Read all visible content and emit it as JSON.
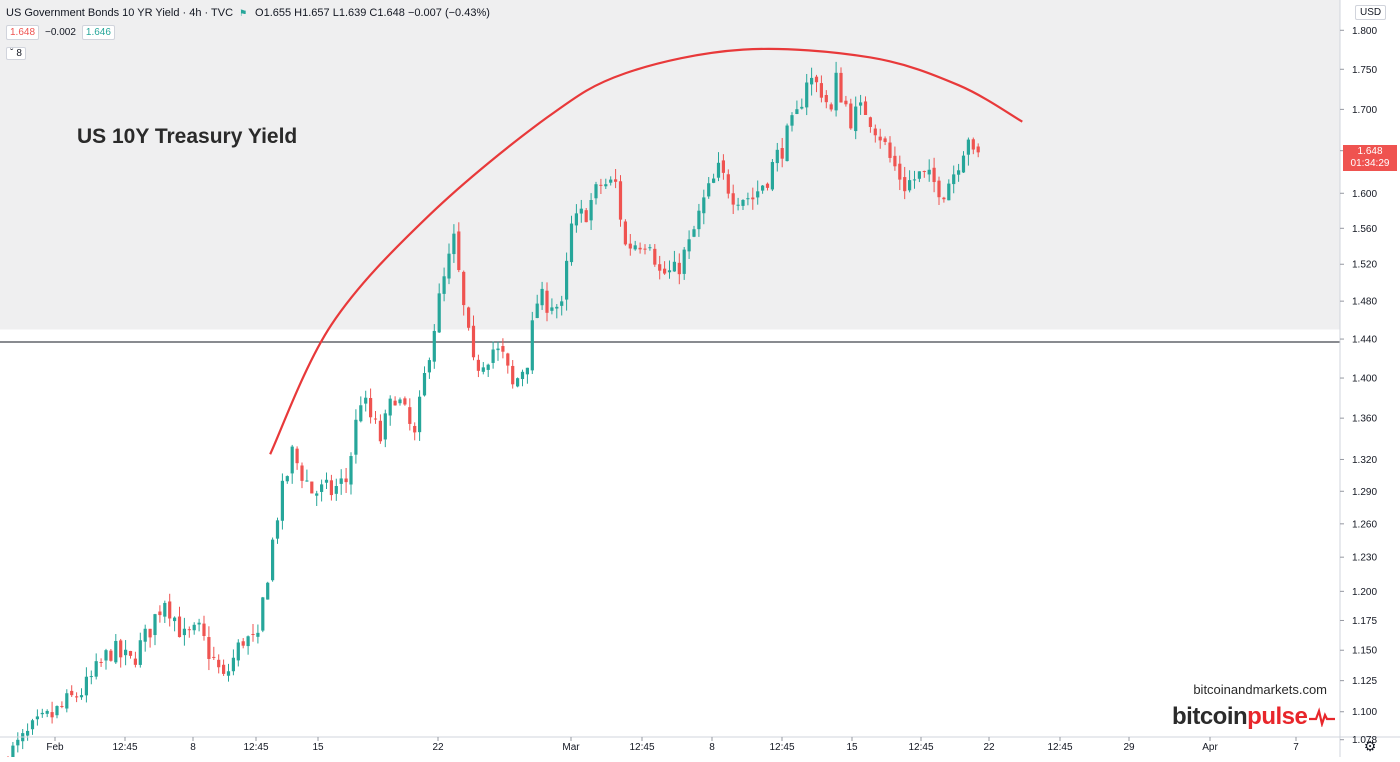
{
  "header": {
    "symbol_title": "US Government Bonds 10 YR Yield · 4h · TVC",
    "ohlc": "O1.655 H1.657 L1.639 C1.648 −0.007 (−0.43%)"
  },
  "price_badges": {
    "sell": "1.648",
    "spread": "−0.002",
    "buy": "1.646"
  },
  "indicator_toggle": "8",
  "annotation": {
    "title": "US 10Y Treasury Yield"
  },
  "currency": "USD",
  "last_price": {
    "value": "1.648",
    "countdown": "01:34:29"
  },
  "branding": {
    "url": "bitcoinandmarkets.com",
    "logo_main": "bitcoin",
    "logo_accent": "pulse"
  },
  "colors": {
    "up": "#26a69a",
    "down": "#ef5350",
    "arc": "#e8393a",
    "shade": "#efeff0",
    "level_line": "#131722"
  },
  "chart_data": {
    "type": "candlestick",
    "title": "US Government Bonds 10 YR Yield · 4h · TVC",
    "ylabel": "",
    "xlabel": "",
    "ylim": [
      1.06,
      1.82
    ],
    "y_scale": "log",
    "y_ticks": [
      "1.800",
      "1.750",
      "1.700",
      "1.650",
      "1.600",
      "1.560",
      "1.520",
      "1.480",
      "1.440",
      "1.400",
      "1.360",
      "1.320",
      "1.290",
      "1.260",
      "1.230",
      "1.200",
      "1.175",
      "1.150",
      "1.125",
      "1.100",
      "1.078"
    ],
    "x_ticks": [
      "Feb",
      "12:45",
      "8",
      "12:45",
      "15",
      "22",
      "Mar",
      "12:45",
      "8",
      "12:45",
      "15",
      "12:45",
      "22",
      "12:45",
      "29",
      "Apr",
      "7"
    ],
    "horizontal_level": 1.437,
    "shaded_zone": [
      1.45,
      1.82
    ],
    "resistance_arc": [
      {
        "t": 53.5,
        "y": 1.325
      },
      {
        "t": 66,
        "y": 1.455
      },
      {
        "t": 86,
        "y": 1.575
      },
      {
        "t": 110,
        "y": 1.69
      },
      {
        "t": 126,
        "y": 1.745
      },
      {
        "t": 150,
        "y": 1.775
      },
      {
        "t": 176,
        "y": 1.765
      },
      {
        "t": 194,
        "y": 1.73
      },
      {
        "t": 207,
        "y": 1.685
      }
    ],
    "anchors": [
      {
        "t": 0,
        "y": 1.065
      },
      {
        "t": 5,
        "y": 1.085
      },
      {
        "t": 10,
        "y": 1.1
      },
      {
        "t": 16,
        "y": 1.12
      },
      {
        "t": 21,
        "y": 1.15
      },
      {
        "t": 25,
        "y": 1.14
      },
      {
        "t": 28,
        "y": 1.16
      },
      {
        "t": 32,
        "y": 1.195
      },
      {
        "t": 36,
        "y": 1.16
      },
      {
        "t": 39,
        "y": 1.165
      },
      {
        "t": 44,
        "y": 1.125
      },
      {
        "t": 48,
        "y": 1.16
      },
      {
        "t": 51,
        "y": 1.155
      },
      {
        "t": 52,
        "y": 1.19
      },
      {
        "t": 55,
        "y": 1.27
      },
      {
        "t": 58,
        "y": 1.325
      },
      {
        "t": 62,
        "y": 1.29
      },
      {
        "t": 66,
        "y": 1.29
      },
      {
        "t": 69,
        "y": 1.3
      },
      {
        "t": 72,
        "y": 1.38
      },
      {
        "t": 76,
        "y": 1.34
      },
      {
        "t": 79,
        "y": 1.385
      },
      {
        "t": 83,
        "y": 1.34
      },
      {
        "t": 86,
        "y": 1.43
      },
      {
        "t": 88,
        "y": 1.48
      },
      {
        "t": 91,
        "y": 1.545
      },
      {
        "t": 93,
        "y": 1.47
      },
      {
        "t": 95,
        "y": 1.41
      },
      {
        "t": 99,
        "y": 1.43
      },
      {
        "t": 101,
        "y": 1.42
      },
      {
        "t": 103,
        "y": 1.39
      },
      {
        "t": 106,
        "y": 1.42
      },
      {
        "t": 108,
        "y": 1.48
      },
      {
        "t": 111,
        "y": 1.48
      },
      {
        "t": 113,
        "y": 1.47
      },
      {
        "t": 115,
        "y": 1.56
      },
      {
        "t": 118,
        "y": 1.58
      },
      {
        "t": 121,
        "y": 1.61
      },
      {
        "t": 124,
        "y": 1.61
      },
      {
        "t": 126,
        "y": 1.54
      },
      {
        "t": 131,
        "y": 1.55
      },
      {
        "t": 133,
        "y": 1.51
      },
      {
        "t": 136,
        "y": 1.51
      },
      {
        "t": 139,
        "y": 1.54
      },
      {
        "t": 142,
        "y": 1.59
      },
      {
        "t": 145,
        "y": 1.625
      },
      {
        "t": 148,
        "y": 1.6
      },
      {
        "t": 152,
        "y": 1.595
      },
      {
        "t": 155,
        "y": 1.62
      },
      {
        "t": 158,
        "y": 1.655
      },
      {
        "t": 161,
        "y": 1.69
      },
      {
        "t": 163,
        "y": 1.74
      },
      {
        "t": 166,
        "y": 1.725
      },
      {
        "t": 168,
        "y": 1.695
      },
      {
        "t": 169,
        "y": 1.735
      },
      {
        "t": 172,
        "y": 1.69
      },
      {
        "t": 175,
        "y": 1.7
      },
      {
        "t": 178,
        "y": 1.67
      },
      {
        "t": 180,
        "y": 1.64
      },
      {
        "t": 183,
        "y": 1.61
      },
      {
        "t": 186,
        "y": 1.62
      },
      {
        "t": 188,
        "y": 1.615
      },
      {
        "t": 191,
        "y": 1.605
      },
      {
        "t": 193,
        "y": 1.625
      },
      {
        "t": 196,
        "y": 1.67
      },
      {
        "t": 197,
        "y": 1.64
      },
      {
        "t": 198,
        "y": 1.648
      }
    ]
  }
}
